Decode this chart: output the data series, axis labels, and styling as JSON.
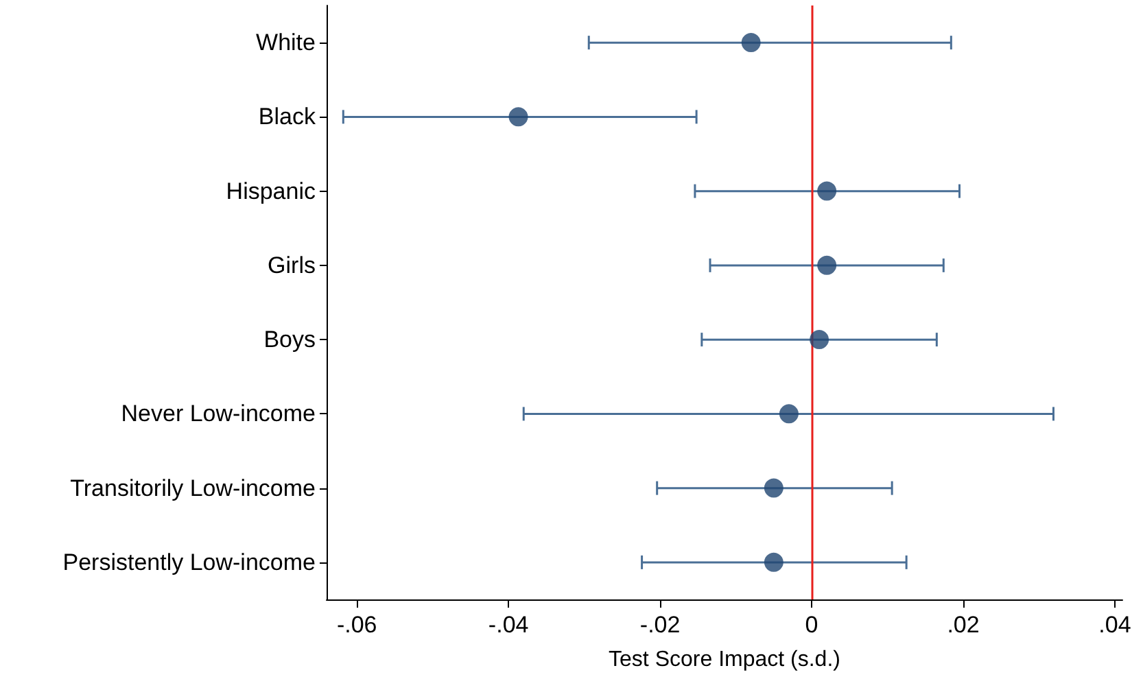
{
  "chart_data": {
    "type": "scatter",
    "orientation": "horizontal",
    "categories": [
      "White",
      "Black",
      "Hispanic",
      "Girls",
      "Boys",
      "Never Low-income",
      "Transitorily Low-income",
      "Persistently Low-income"
    ],
    "values": [
      -0.008,
      -0.0387,
      0.002,
      0.002,
      0.001,
      -0.003,
      -0.005,
      -0.005
    ],
    "errors": [
      [
        -0.0294,
        0.0184
      ],
      [
        -0.0618,
        -0.0152
      ],
      [
        -0.0154,
        0.0195
      ],
      [
        -0.0134,
        0.0174
      ],
      [
        -0.0145,
        0.0165
      ],
      [
        -0.038,
        0.0319
      ],
      [
        -0.0204,
        0.0106
      ],
      [
        -0.0224,
        0.0125
      ]
    ],
    "color": "#1f4571",
    "xlabel": "Test Score Impact (s.d.)",
    "xlim": [
      -0.064,
      0.041
    ],
    "xticks": [
      {
        "value": -0.06,
        "label": "-.06"
      },
      {
        "value": -0.04,
        "label": "-.04"
      },
      {
        "value": -0.02,
        "label": "-.02"
      },
      0,
      {
        "value": 0.02,
        "label": ".02"
      },
      {
        "value": 0.04,
        "label": ".04"
      }
    ],
    "ref_lines": [
      {
        "axis": "x",
        "value": 0,
        "color": "#e8201c"
      }
    ],
    "marker": "circle",
    "grid": false
  }
}
